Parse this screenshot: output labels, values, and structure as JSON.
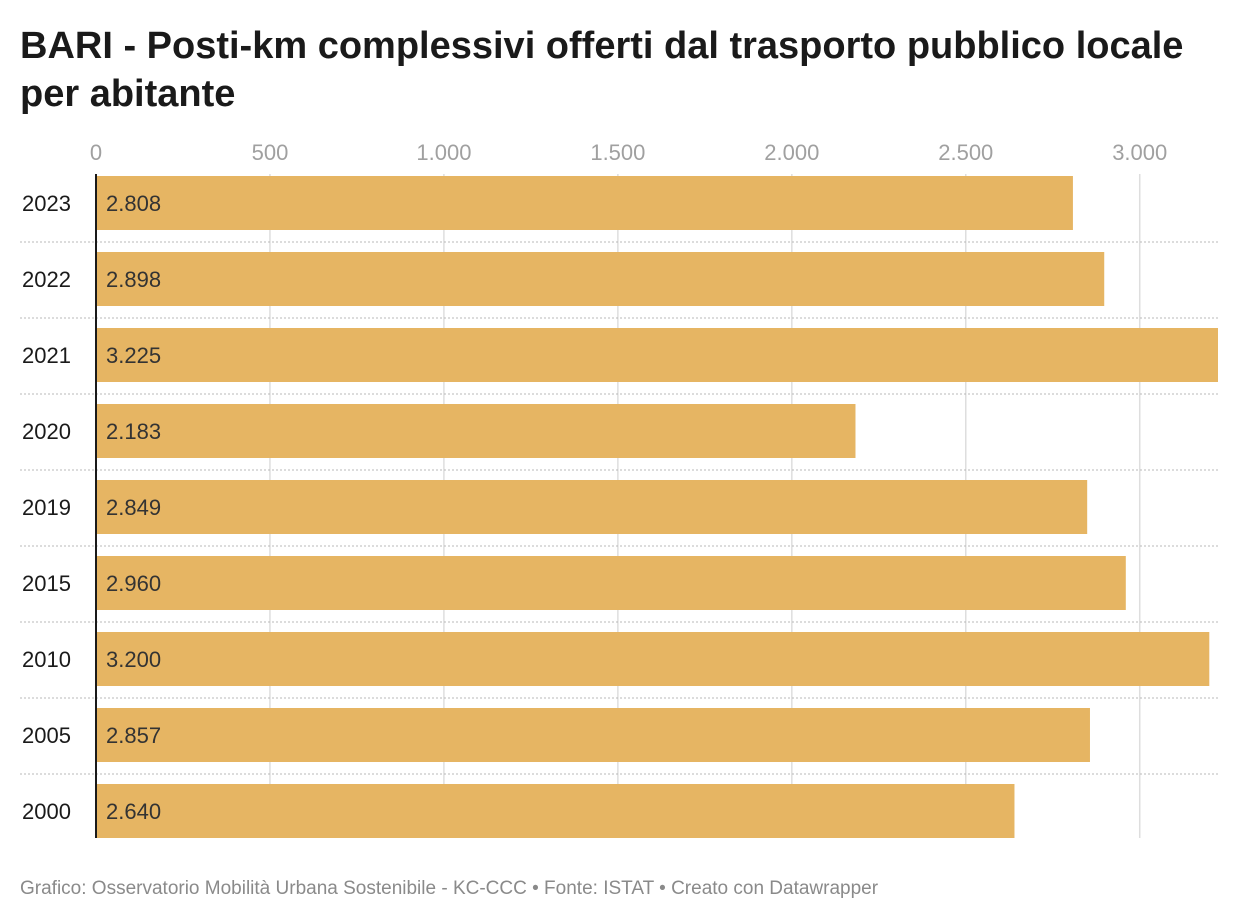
{
  "chart_data": {
    "type": "bar",
    "orientation": "horizontal",
    "title": "BARI - Posti-km complessivi offerti dal trasporto pubblico locale per abitante",
    "categories": [
      "2023",
      "2022",
      "2021",
      "2020",
      "2019",
      "2015",
      "2010",
      "2005",
      "2000"
    ],
    "values": [
      2808,
      2898,
      3225,
      2183,
      2849,
      2960,
      3200,
      2857,
      2640
    ],
    "value_labels": [
      "2.808",
      "2.898",
      "3.225",
      "2.183",
      "2.849",
      "2.960",
      "3.200",
      "2.857",
      "2.640"
    ],
    "x_ticks": [
      0,
      500,
      1000,
      1500,
      2000,
      2500,
      3000
    ],
    "x_tick_labels": [
      "0",
      "500",
      "1.000",
      "1.500",
      "2.000",
      "2.500",
      "3.000"
    ],
    "xlim": [
      0,
      3225
    ],
    "grid": true,
    "axis_position": "top",
    "bar_color": "#e6b563"
  },
  "footer": "Grafico: Osservatorio Mobilità Urbana Sostenibile - KC-CCC • Fonte: ISTAT • Creato con Datawrapper"
}
